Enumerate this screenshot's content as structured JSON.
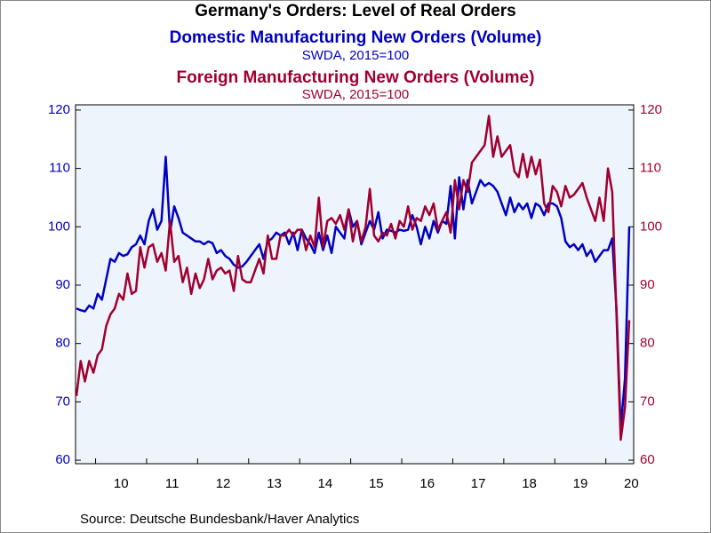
{
  "chart_data": {
    "type": "line",
    "title": "Germany's Orders: Level of Real Orders",
    "source": "Source:  Deutsche Bundesbank/Haver Analytics",
    "categories": [
      null,
      null,
      null,
      null,
      null,
      null,
      null,
      null,
      null,
      null,
      "10",
      null,
      null,
      null,
      null,
      null,
      null,
      null,
      null,
      null,
      null,
      null,
      "11",
      null,
      null,
      null,
      null,
      null,
      null,
      null,
      null,
      null,
      null,
      null,
      "12",
      null,
      null,
      null,
      null,
      null,
      null,
      null,
      null,
      null,
      null,
      null,
      "13",
      null,
      null,
      null,
      null,
      null,
      null,
      null,
      null,
      null,
      null,
      null,
      "14",
      null,
      null,
      null,
      null,
      null,
      null,
      null,
      null,
      null,
      null,
      null,
      "15",
      null,
      null,
      null,
      null,
      null,
      null,
      null,
      null,
      null,
      null,
      null,
      "16",
      null,
      null,
      null,
      null,
      null,
      null,
      null,
      null,
      null,
      null,
      null,
      "17",
      null,
      null,
      null,
      null,
      null,
      null,
      null,
      null,
      null,
      null,
      null,
      "18",
      null,
      null,
      null,
      null,
      null,
      null,
      null,
      null,
      null,
      null,
      null,
      "19",
      null,
      null,
      null,
      null,
      null,
      null,
      null,
      null,
      null,
      null,
      null,
      "20"
    ],
    "series": [
      {
        "name": "Domestic Manufacturing New Orders (Volume)",
        "unit": "SWDA, 2015=100",
        "color": "#0000c0",
        "axis": "y",
        "values": [
          86,
          85.7,
          85.5,
          86.5,
          86,
          88.5,
          87.5,
          91,
          94.5,
          94,
          95.5,
          95,
          95.3,
          96.5,
          97,
          98.5,
          97,
          101,
          103,
          99.5,
          101,
          112,
          99,
          103.5,
          101.5,
          99,
          98.5,
          98,
          97.5,
          97.5,
          97,
          97.5,
          97.2,
          95.5,
          96,
          95,
          94.5,
          93.5,
          93,
          93.2,
          94,
          95,
          96,
          97,
          94.5,
          97.5,
          98,
          99,
          98.5,
          99,
          97,
          99,
          96,
          99.5,
          98,
          97,
          95.5,
          99,
          96,
          98.5,
          95.5,
          100,
          99,
          98,
          103,
          100,
          101,
          97,
          99,
          101,
          99.5,
          102.5,
          98,
          99.5,
          99.3,
          99,
          99.5,
          99.3,
          99.5,
          102,
          100,
          97,
          100,
          98,
          101,
          99,
          101,
          100.5,
          107,
          98,
          108.5,
          103,
          108,
          104,
          106,
          108,
          107,
          107.5,
          107,
          106,
          104,
          102,
          105,
          102.5,
          104,
          103,
          104,
          101.5,
          104,
          103.5,
          102,
          104,
          104,
          103.5,
          101.5,
          97.5,
          96.5,
          97,
          96,
          97,
          95,
          96,
          94,
          95,
          96,
          96,
          98,
          86,
          65.5,
          74,
          100
        ]
      },
      {
        "name": "Foreign Manufacturing New Orders (Volume)",
        "unit": "SWDA, 2015=100",
        "color": "#a00030",
        "axis": "y2",
        "values": [
          71,
          77,
          73.5,
          77,
          75,
          78,
          79,
          83,
          85,
          86,
          88.5,
          87.5,
          92,
          88.5,
          89,
          96.5,
          93,
          96.5,
          97,
          94,
          95.5,
          92.5,
          101,
          94,
          95,
          90.5,
          93,
          88.5,
          92,
          89.5,
          91,
          94.5,
          91,
          92.5,
          93,
          92,
          92.5,
          89,
          95,
          91,
          90.5,
          90.5,
          92.5,
          94.5,
          92,
          98.5,
          94.5,
          94.5,
          98.5,
          98.5,
          99.5,
          98.5,
          99.5,
          99.5,
          96,
          98.5,
          96.5,
          105,
          96.5,
          101,
          101.5,
          100.5,
          102,
          99.5,
          103,
          97.5,
          101,
          97.5,
          100,
          106.5,
          98.5,
          97.5,
          99,
          98.5,
          100.5,
          98,
          101,
          100,
          103.5,
          99.5,
          101.5,
          101,
          103.5,
          102,
          104,
          99.5,
          101,
          102.5,
          99,
          108,
          103,
          108,
          106,
          111,
          112,
          113,
          114,
          119,
          112,
          115.5,
          112,
          113,
          114,
          109.5,
          108.5,
          112.5,
          108.5,
          112,
          109,
          111.5,
          104,
          102.5,
          107,
          106,
          103.5,
          107,
          105,
          105.5,
          106.5,
          107.5,
          105,
          103,
          101,
          105,
          101,
          110,
          106,
          85,
          63.5,
          69,
          84
        ]
      }
    ],
    "ylim": [
      59.4,
      120.9
    ],
    "yticks": [
      60,
      70,
      80,
      90,
      100,
      110,
      120
    ],
    "y2lim": [
      59.4,
      120.9
    ],
    "y2ticks": [
      60,
      70,
      80,
      90,
      100,
      110,
      120
    ]
  }
}
